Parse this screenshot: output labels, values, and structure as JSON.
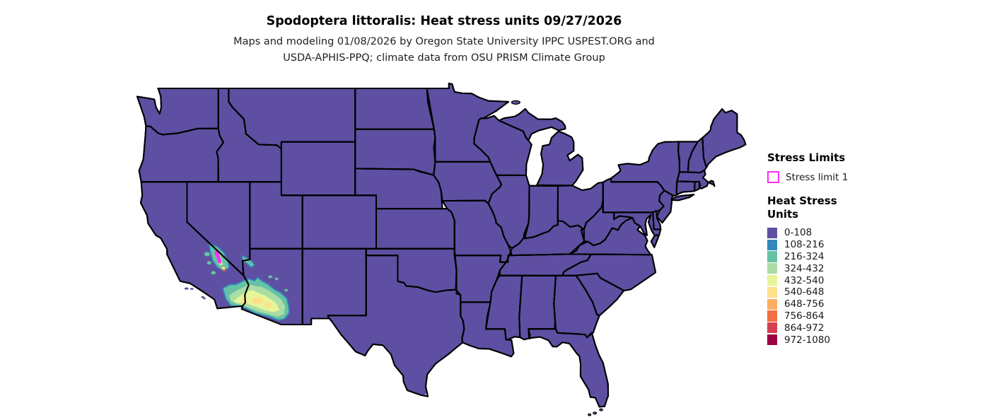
{
  "title": "Spodoptera littoralis: Heat stress units 09/27/2026",
  "subtitle_line1": "Maps and modeling 01/08/2026 by Oregon State University IPPC USPEST.ORG and",
  "subtitle_line2": "USDA-APHIS-PPQ; climate data from OSU PRISM Climate Group",
  "legend": {
    "stress_limits_title": "Stress Limits",
    "stress_limit_items": [
      {
        "label": "Stress limit 1",
        "outline_color": "#ff2ef2",
        "fill": "#ffffff"
      }
    ],
    "heat_title_line1": "Heat Stress",
    "heat_title_line2": "Units",
    "classes": [
      {
        "range": "0-108",
        "color": "#5e4fa2"
      },
      {
        "range": "108-216",
        "color": "#3288bd"
      },
      {
        "range": "216-324",
        "color": "#66c2a5"
      },
      {
        "range": "324-432",
        "color": "#abdda4"
      },
      {
        "range": "432-540",
        "color": "#e6f598"
      },
      {
        "range": "540-648",
        "color": "#fee08b"
      },
      {
        "range": "648-756",
        "color": "#fdae61"
      },
      {
        "range": "756-864",
        "color": "#f46d43"
      },
      {
        "range": "864-972",
        "color": "#d53e4f"
      },
      {
        "range": "972-1080",
        "color": "#9e0142"
      }
    ]
  },
  "map": {
    "background": "#ffffff",
    "border_color": "#000000",
    "base_fill": "#5e4fa2",
    "stress_limit_color": "#ff2ef2"
  }
}
